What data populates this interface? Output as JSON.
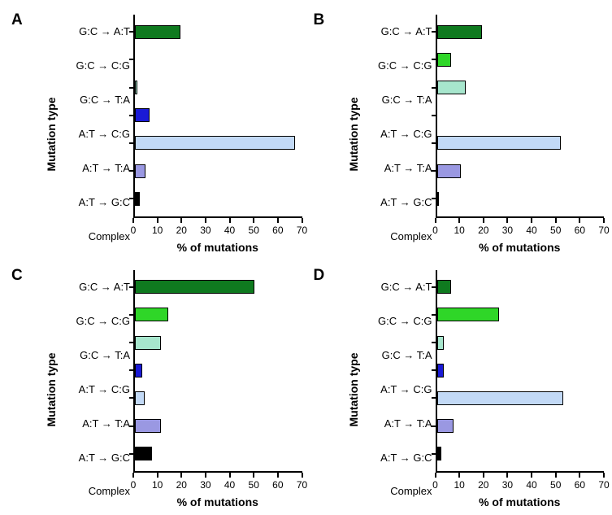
{
  "xmax": 70,
  "xtick_step": 10,
  "y_axis_label": "Mutation type",
  "x_axis_label": "% of mutations",
  "categories": [
    "G:C → A:T",
    "G:C → C:G",
    "G:C → T:A",
    "A:T → C:G",
    "A:T → T:A",
    "A:T → G:C",
    "Complex"
  ],
  "colors": {
    "GC_AT": "#0f7a1f",
    "GC_CG": "#2fd628",
    "GC_TA": "#a7e6cd",
    "AT_CG": "#1a1ad6",
    "AT_TA": "#c2d9f6",
    "AT_GC": "#9a98e2",
    "Complex": "#000000"
  },
  "panels": [
    {
      "letter": "A",
      "values": [
        19,
        0,
        1,
        6,
        67,
        4.5,
        2
      ]
    },
    {
      "letter": "B",
      "values": [
        19,
        6,
        12,
        0,
        52,
        10,
        1
      ]
    },
    {
      "letter": "C",
      "values": [
        50,
        14,
        11,
        3,
        4,
        11,
        7
      ]
    },
    {
      "letter": "D",
      "values": [
        6,
        26,
        3,
        3,
        53,
        7,
        2
      ]
    }
  ],
  "bar_color_keys": [
    "GC_AT",
    "GC_CG",
    "GC_TA",
    "AT_CG",
    "AT_TA",
    "AT_GC",
    "Complex"
  ]
}
